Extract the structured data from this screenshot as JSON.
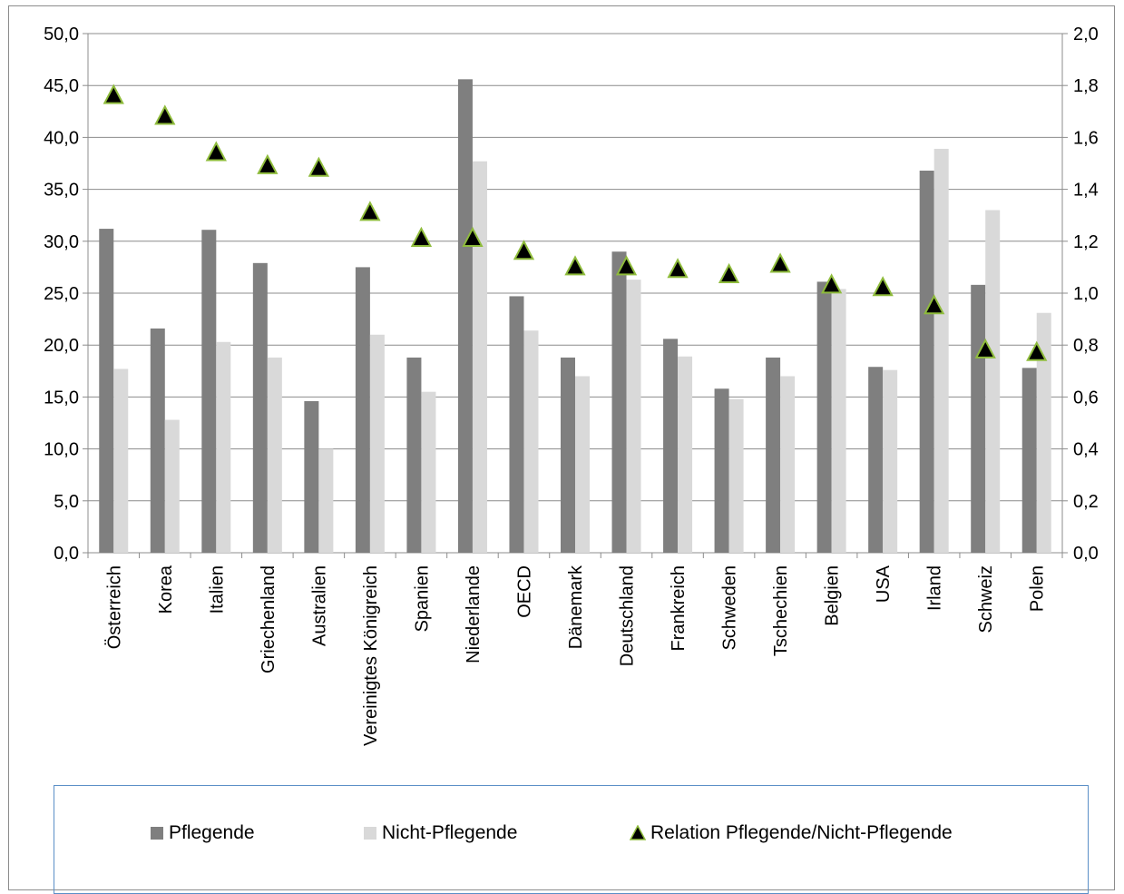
{
  "chart_data": {
    "type": "bar",
    "categories": [
      "Österreich",
      "Korea",
      "Italien",
      "Griechenland",
      "Australien",
      "Vereinigtes Königreich",
      "Spanien",
      "Niederlande",
      "OECD",
      "Dänemark",
      "Deutschland",
      "Frankreich",
      "Schweden",
      "Tschechien",
      "Belgien",
      "USA",
      "Irland",
      "Schweiz",
      "Polen"
    ],
    "series": [
      {
        "name": "Pflegende",
        "kind": "bar",
        "axis": "left",
        "color": "#7f7f7f",
        "values": [
          31.2,
          21.6,
          31.1,
          27.9,
          14.6,
          27.5,
          18.8,
          45.6,
          24.7,
          18.8,
          29.0,
          20.6,
          15.8,
          18.8,
          26.1,
          17.9,
          36.8,
          25.8,
          17.8
        ]
      },
      {
        "name": "Nicht-Pflegende",
        "kind": "bar",
        "axis": "left",
        "color": "#d9d9d9",
        "values": [
          17.7,
          12.8,
          20.3,
          18.8,
          10.0,
          21.0,
          15.5,
          37.7,
          21.4,
          17.0,
          26.3,
          18.9,
          14.8,
          17.0,
          25.4,
          17.6,
          38.9,
          33.0,
          23.1
        ]
      },
      {
        "name": "Relation Pflegende/Nicht-Pflegende",
        "kind": "marker",
        "axis": "right",
        "color": "#000000",
        "values": [
          1.76,
          1.68,
          1.54,
          1.49,
          1.48,
          1.31,
          1.21,
          1.21,
          1.16,
          1.1,
          1.1,
          1.09,
          1.07,
          1.11,
          1.03,
          1.02,
          0.95,
          0.78,
          0.77
        ]
      }
    ],
    "y_left": {
      "min": 0,
      "max": 50,
      "ticks": [
        "0,0",
        "5,0",
        "10,0",
        "15,0",
        "20,0",
        "25,0",
        "30,0",
        "35,0",
        "40,0",
        "45,0",
        "50,0"
      ]
    },
    "y_right": {
      "min": 0,
      "max": 2,
      "ticks": [
        "0,0",
        "0,2",
        "0,4",
        "0,6",
        "0,8",
        "1,0",
        "1,2",
        "1,4",
        "1,6",
        "1,8",
        "2,0"
      ]
    },
    "grid": "horizontal",
    "legend_position": "bottom"
  },
  "legend": {
    "items": [
      {
        "label": "Pflegende"
      },
      {
        "label": "Nicht-Pflegende"
      },
      {
        "label": "Relation Pflegende/Nicht-Pflegende"
      }
    ]
  },
  "colors": {
    "marker_outline": "#8fbc3c",
    "grid": "#8c8c8c",
    "legend_border": "#5b8fc7"
  }
}
